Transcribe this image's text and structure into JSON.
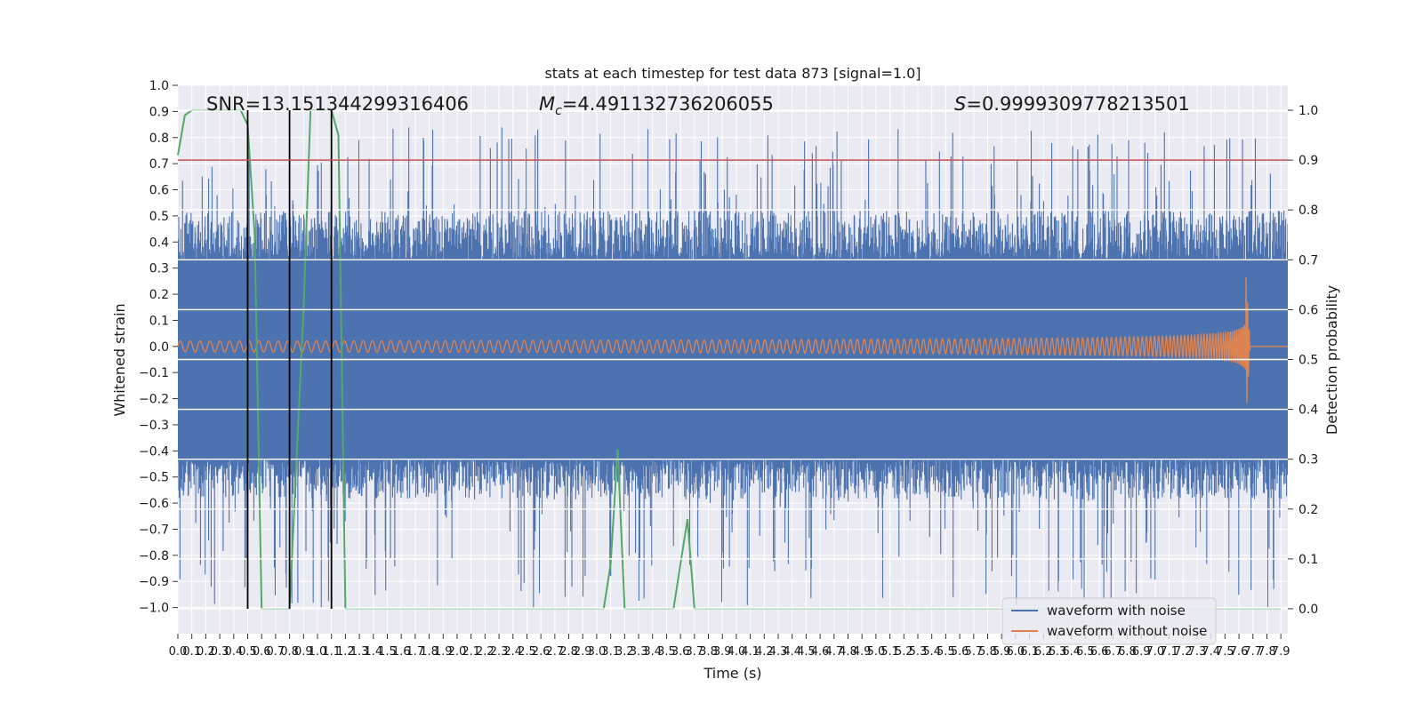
{
  "chart_data": {
    "type": "line",
    "title": "stats at each timestep for test data 873 [signal=1.0]",
    "xlabel": "Time (s)",
    "ylabel": "Whitened strain",
    "y2label": "Detection probability",
    "xlim": [
      0,
      7.95
    ],
    "ylim": [
      -1.1,
      1.0
    ],
    "y2lim": [
      -0.05,
      1.05
    ],
    "x_ticks": [
      0.0,
      0.1,
      0.2,
      0.3,
      0.4,
      0.5,
      0.6,
      0.7,
      0.8,
      0.9,
      1.0,
      1.1,
      1.2,
      1.3,
      1.4,
      1.5,
      1.6,
      1.7,
      1.8,
      1.9,
      2.0,
      2.1,
      2.2,
      2.3,
      2.4,
      2.5,
      2.6,
      2.7,
      2.8,
      2.9,
      3.0,
      3.1,
      3.2,
      3.3,
      3.4,
      3.5,
      3.6,
      3.7,
      3.8,
      3.9,
      4.0,
      4.1,
      4.2,
      4.3,
      4.4,
      4.5,
      4.6,
      4.7,
      4.8,
      4.9,
      5.0,
      5.1,
      5.2,
      5.3,
      5.4,
      5.5,
      5.6,
      5.7,
      5.8,
      5.9,
      6.0,
      6.1,
      6.2,
      6.3,
      6.4,
      6.5,
      6.6,
      6.7,
      6.8,
      6.9,
      7.0,
      7.1,
      7.2,
      7.3,
      7.4,
      7.5,
      7.6,
      7.7,
      7.8,
      7.9
    ],
    "y_ticks": [
      -1.0,
      -0.9,
      -0.8,
      -0.7,
      -0.6,
      -0.5,
      -0.4,
      -0.3,
      -0.2,
      -0.1,
      0.0,
      0.1,
      0.2,
      0.3,
      0.4,
      0.5,
      0.6,
      0.7,
      0.8,
      0.9,
      1.0
    ],
    "y2_ticks": [
      0.0,
      0.1,
      0.2,
      0.3,
      0.4,
      0.5,
      0.6,
      0.7,
      0.8,
      0.9,
      1.0
    ],
    "annotations": [
      {
        "key": "snr",
        "text": "SNR=13.151344299316406"
      },
      {
        "key": "mc",
        "prefix": "M",
        "sub": "c",
        "text": "=4.491132736206055"
      },
      {
        "key": "s",
        "prefix": "S",
        "text": "=0.9999309778213501"
      }
    ],
    "threshold": {
      "axis": "right",
      "value": 0.9,
      "color": "#c44e52"
    },
    "vlines": [
      0.5,
      0.8,
      1.1
    ],
    "noise_band": {
      "core_low": -0.43,
      "core_high": 0.33,
      "peak_max": 0.84,
      "trough_min": -1.0
    },
    "chirp": {
      "amp_start": 0.02,
      "amp_peak": 0.28,
      "t_merger": 7.65,
      "t_end": 7.68,
      "f_start": 14,
      "f_end": 90
    },
    "series": [
      {
        "name": "waveform with noise",
        "color": "#4c72b0",
        "axis": "left"
      },
      {
        "name": "waveform without noise",
        "color": "#dd8452",
        "axis": "left"
      },
      {
        "name": "detection probability",
        "color": "#55a868",
        "axis": "right",
        "x": [
          0.0,
          0.05,
          0.1,
          0.15,
          0.2,
          0.25,
          0.3,
          0.35,
          0.4,
          0.45,
          0.5,
          0.55,
          0.6,
          0.65,
          0.7,
          0.75,
          0.8,
          0.85,
          0.9,
          0.95,
          1.0,
          1.05,
          1.1,
          1.15,
          1.2,
          1.3,
          1.4,
          1.5,
          1.6,
          1.7,
          1.8,
          1.9,
          2.0,
          2.1,
          2.2,
          2.3,
          2.4,
          2.5,
          2.6,
          2.7,
          2.8,
          2.9,
          3.0,
          3.05,
          3.1,
          3.15,
          3.2,
          3.25,
          3.3,
          3.35,
          3.4,
          3.45,
          3.5,
          3.55,
          3.6,
          3.65,
          3.7,
          3.75,
          3.8,
          3.9,
          4.0,
          5.0,
          6.0,
          7.0,
          7.9
        ],
        "values": [
          0.91,
          0.99,
          1.0,
          1.0,
          1.0,
          1.0,
          1.0,
          1.0,
          1.0,
          1.0,
          0.97,
          0.75,
          0.0,
          0.0,
          0.0,
          0.0,
          0.0,
          0.3,
          0.6,
          1.0,
          1.0,
          1.0,
          1.0,
          0.95,
          0.0,
          0.0,
          0.0,
          0.0,
          0.0,
          0.0,
          0.0,
          0.0,
          0.0,
          0.0,
          0.0,
          0.0,
          0.0,
          0.0,
          0.0,
          0.0,
          0.0,
          0.0,
          0.0,
          0.0,
          0.09,
          0.32,
          0.0,
          0.0,
          0.0,
          0.0,
          0.0,
          0.0,
          0.0,
          0.0,
          0.09,
          0.18,
          0.0,
          0.0,
          0.0,
          0.0,
          0.0,
          0.0,
          0.0,
          0.0,
          0.0
        ]
      }
    ],
    "legend": {
      "position": "bottom-right",
      "entries": [
        {
          "label": "waveform with noise",
          "color": "#4c72b0"
        },
        {
          "label": "waveform without noise",
          "color": "#dd8452"
        }
      ]
    }
  }
}
